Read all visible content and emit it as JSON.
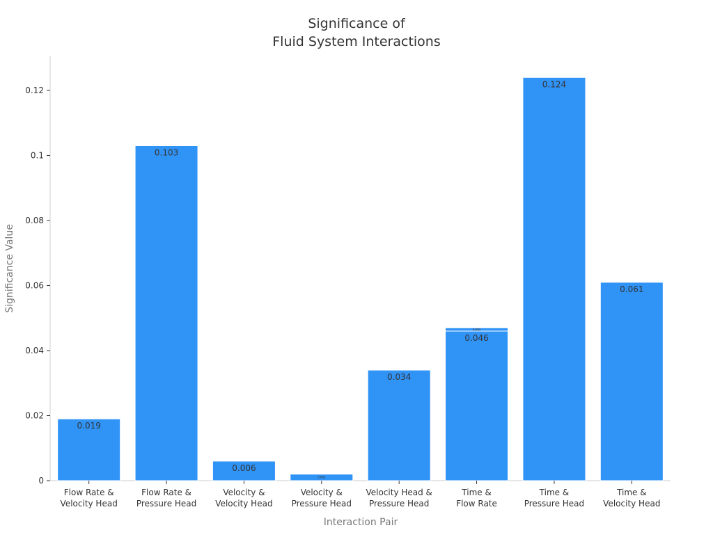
{
  "chart_data": {
    "type": "bar",
    "title": [
      "Significance of",
      "Fluid System Interactions"
    ],
    "xlabel": "Interaction Pair",
    "ylabel": "Significance Value",
    "ylim": [
      0,
      0.13
    ],
    "yticks": [
      0,
      0.02,
      0.04,
      0.06,
      0.08,
      0.1,
      0.12
    ],
    "ytick_labels": [
      "0",
      "0.02",
      "0.04",
      "0.06",
      "0.08",
      "0.1",
      "0.12"
    ],
    "categories": [
      [
        "Flow Rate &",
        "Velocity Head"
      ],
      [
        "Flow Rate &",
        "Pressure Head"
      ],
      [
        "Velocity &",
        "Velocity Head"
      ],
      [
        "Velocity &",
        "Pressure Head"
      ],
      [
        "Velocity Head &",
        "Pressure Head"
      ],
      [
        "Time &",
        "Flow Rate"
      ],
      [
        "Time &",
        "Pressure Head"
      ],
      [
        "Time &",
        "Velocity Head"
      ]
    ],
    "values": [
      0.019,
      0.103,
      0.006,
      0.002,
      0.034,
      0.046,
      0.124,
      0.061
    ],
    "data_labels": [
      "0.019",
      "0.103",
      "0.006",
      "0.002",
      "0.034",
      "0.046",
      "0.124",
      "0.061"
    ],
    "stacked_extra": [
      0,
      0,
      0,
      0,
      0,
      0.001,
      0,
      0
    ],
    "stacked_extra_labels": [
      "",
      "",
      "",
      "",
      "",
      "0.001",
      "",
      ""
    ],
    "grid": false,
    "colors": {
      "bar": "#3093f6",
      "bar_edge": "#ffffff",
      "text": "#333333",
      "axis": "#cccccc"
    }
  }
}
